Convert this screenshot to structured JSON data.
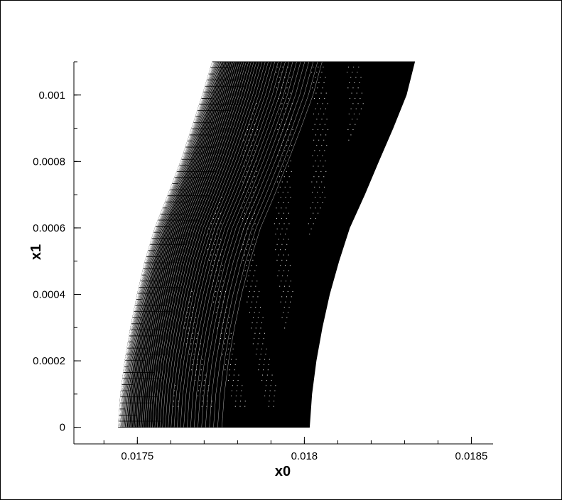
{
  "chart_data": {
    "type": "mesh",
    "xlabel": "x0",
    "ylabel": "x1",
    "xlim": [
      0.01731,
      0.018565
    ],
    "ylim": [
      -5e-05,
      0.0011
    ],
    "x_ticks": [
      {
        "value": 0.0175,
        "label": "0.0175"
      },
      {
        "value": 0.018,
        "label": "0.018"
      },
      {
        "value": 0.0185,
        "label": "0.0185"
      }
    ],
    "y_ticks": [
      {
        "value": 0,
        "label": "0"
      },
      {
        "value": 0.0002,
        "label": "0.0002"
      },
      {
        "value": 0.0004,
        "label": "0.0004"
      },
      {
        "value": 0.0006,
        "label": "0.0006"
      },
      {
        "value": 0.0008,
        "label": "0.0008"
      },
      {
        "value": 0.001,
        "label": "0.001"
      }
    ],
    "x_minor_step": 0.0001,
    "y_minor_step": 0.0001,
    "grid": false,
    "mesh": {
      "y_range": [
        0,
        0.0011
      ],
      "inner_boundary": [
        [
          0.017443,
          0
        ],
        [
          0.01745,
          0.0001
        ],
        [
          0.017463,
          0.0002
        ],
        [
          0.01748,
          0.0003
        ],
        [
          0.0175,
          0.0004
        ],
        [
          0.017523,
          0.0005
        ],
        [
          0.017553,
          0.0006
        ],
        [
          0.017592,
          0.0007
        ],
        [
          0.01763,
          0.0008
        ],
        [
          0.017663,
          0.0009
        ],
        [
          0.017695,
          0.001
        ],
        [
          0.017725,
          0.0011
        ]
      ],
      "outer_boundary": [
        [
          0.018015,
          0
        ],
        [
          0.018022,
          0.0001
        ],
        [
          0.018035,
          0.0002
        ],
        [
          0.018053,
          0.0003
        ],
        [
          0.018075,
          0.0004
        ],
        [
          0.018103,
          0.0005
        ],
        [
          0.018135,
          0.0006
        ],
        [
          0.01818,
          0.0007
        ],
        [
          0.018222,
          0.0008
        ],
        [
          0.018265,
          0.0009
        ],
        [
          0.018305,
          0.001
        ],
        [
          0.01833,
          0.0011
        ]
      ]
    },
    "line_color": "#000000"
  }
}
